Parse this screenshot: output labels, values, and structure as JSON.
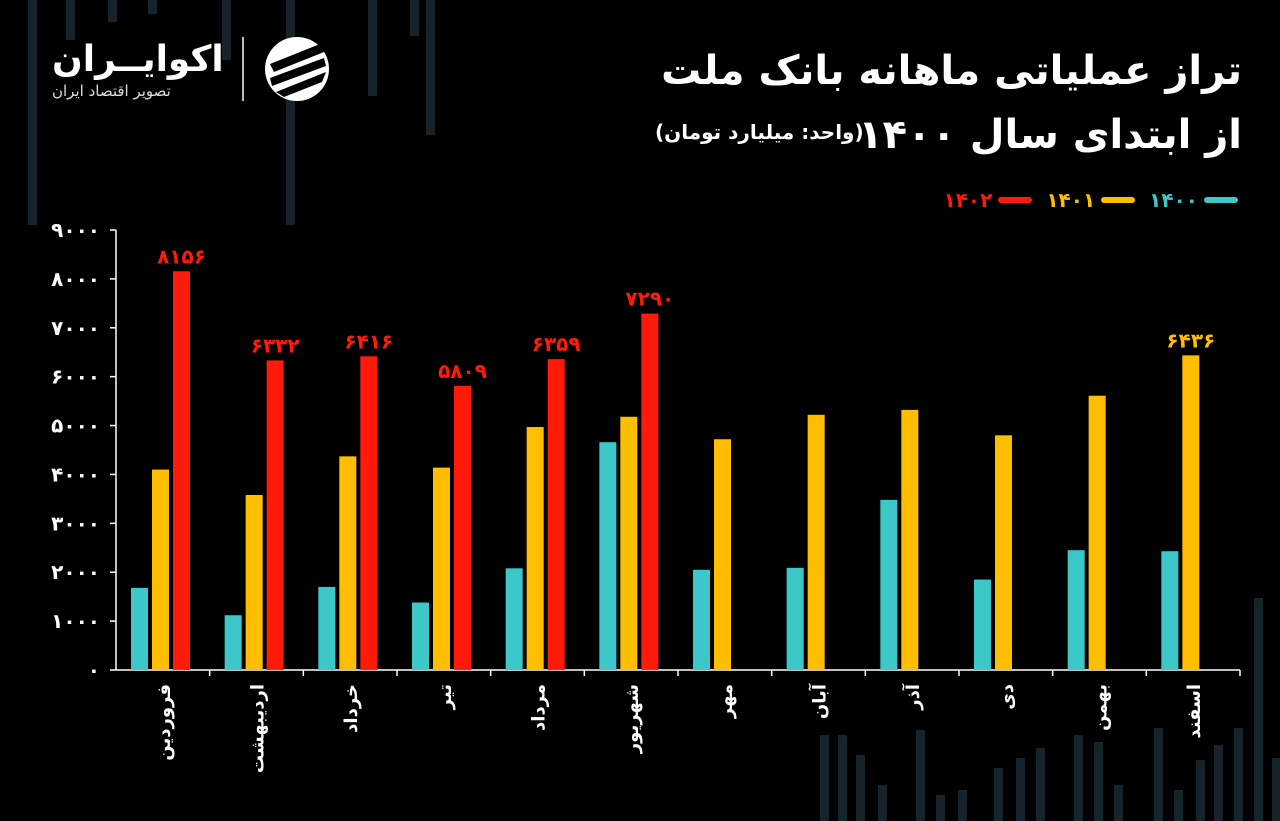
{
  "title_line1": "تراز عملیاتی ماهانه بانک ملت",
  "title_line2": "از ابتدای سال ۱۴۰۰",
  "unit": "(واحد: میلیارد تومان)",
  "brand": {
    "name": "اکوایــران",
    "tagline": "تصویر اقتصاد ایران"
  },
  "colors": {
    "y1400": "#3cc8c8",
    "y1401": "#ffbf00",
    "y1402": "#ff1a0a",
    "axis": "#ffffff",
    "background": "#000000"
  },
  "legend": [
    {
      "label": "۱۴۰۰",
      "color": "#3cc8c8"
    },
    {
      "label": "۱۴۰۱",
      "color": "#ffbf00"
    },
    {
      "label": "۱۴۰۲",
      "color": "#ff1a0a"
    }
  ],
  "chart_data": {
    "type": "bar",
    "categories": [
      "فروردین",
      "اردیبهشت",
      "خرداد",
      "تیر",
      "مرداد",
      "شهریور",
      "مهر",
      "آبان",
      "آذر",
      "دی",
      "بهمن",
      "اسفند"
    ],
    "series": [
      {
        "name": "۱۴۰۰",
        "values": [
          1680,
          1120,
          1700,
          1380,
          2080,
          4660,
          2050,
          2090,
          3480,
          1850,
          2450,
          2430
        ]
      },
      {
        "name": "۱۴۰۱",
        "values": [
          4100,
          3580,
          4370,
          4140,
          4970,
          5180,
          4720,
          5220,
          5320,
          4800,
          5610,
          6436
        ]
      },
      {
        "name": "۱۴۰۲",
        "values": [
          8156,
          6332,
          6416,
          5809,
          6359,
          7290,
          null,
          null,
          null,
          null,
          null,
          null
        ]
      }
    ],
    "data_labels": [
      {
        "category": "فروردین",
        "series": "۱۴۰۲",
        "text": "۸۱۵۶"
      },
      {
        "category": "اردیبهشت",
        "series": "۱۴۰۲",
        "text": "۶۳۳۲"
      },
      {
        "category": "خرداد",
        "series": "۱۴۰۲",
        "text": "۶۴۱۶"
      },
      {
        "category": "تیر",
        "series": "۱۴۰۲",
        "text": "۵۸۰۹"
      },
      {
        "category": "مرداد",
        "series": "۱۴۰۲",
        "text": "۶۳۵۹"
      },
      {
        "category": "شهریور",
        "series": "۱۴۰۲",
        "text": "۷۲۹۰"
      },
      {
        "category": "اسفند",
        "series": "۱۴۰۱",
        "text": "۶۴۳۶"
      }
    ],
    "yticks": [
      0,
      1000,
      2000,
      3000,
      4000,
      5000,
      6000,
      7000,
      8000,
      9000
    ],
    "ytick_labels": [
      "۰",
      "۱۰۰۰",
      "۲۰۰۰",
      "۳۰۰۰",
      "۴۰۰۰",
      "۵۰۰۰",
      "۶۰۰۰",
      "۷۰۰۰",
      "۸۰۰۰",
      "۹۰۰۰"
    ],
    "ylim": [
      0,
      9000
    ],
    "grid": false,
    "legend_position": "top-right"
  }
}
